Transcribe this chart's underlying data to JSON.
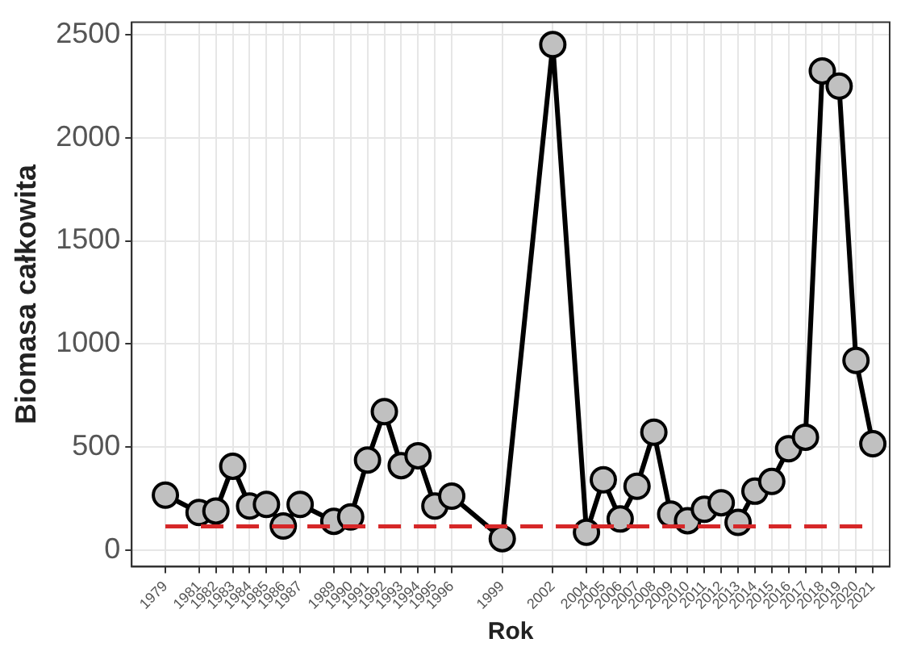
{
  "chart_data": {
    "type": "line",
    "xlabel": "Rok",
    "ylabel": "Biomasa całkowita",
    "x": [
      1979,
      1981,
      1982,
      1983,
      1984,
      1985,
      1986,
      1987,
      1989,
      1990,
      1991,
      1992,
      1993,
      1994,
      1995,
      1996,
      1999,
      2002,
      2004,
      2005,
      2006,
      2007,
      2008,
      2009,
      2010,
      2011,
      2012,
      2013,
      2014,
      2015,
      2016,
      2017,
      2018,
      2019,
      2020,
      2021
    ],
    "series": [
      {
        "color": "#000000",
        "values": [
          267,
          183,
          190,
          407,
          214,
          222,
          117,
          222,
          140,
          161,
          437,
          672,
          410,
          458,
          214,
          262,
          56,
          2452,
          87,
          341,
          151,
          310,
          572,
          175,
          143,
          198,
          230,
          135,
          286,
          333,
          492,
          548,
          2324,
          2250,
          920,
          516
        ]
      }
    ],
    "xlim": [
      1977,
      2022
    ],
    "xticks": [
      1979,
      1981,
      1982,
      1983,
      1984,
      1985,
      1986,
      1987,
      1989,
      1990,
      1991,
      1992,
      1993,
      1994,
      1995,
      1996,
      1999,
      2002,
      2004,
      2005,
      2006,
      2007,
      2008,
      2009,
      2010,
      2011,
      2012,
      2013,
      2014,
      2015,
      2016,
      2017,
      2018,
      2019,
      2020,
      2021
    ],
    "ylim": [
      -80,
      2560
    ],
    "yticks": [
      0,
      500,
      1000,
      1500,
      2000,
      2500
    ],
    "ref_lines": [
      {
        "axis": "y",
        "value": 115,
        "color": "#d62728",
        "line_style": "dashed"
      }
    ],
    "grid": true,
    "legend": false,
    "marker": "circle",
    "line_style": "solid"
  }
}
